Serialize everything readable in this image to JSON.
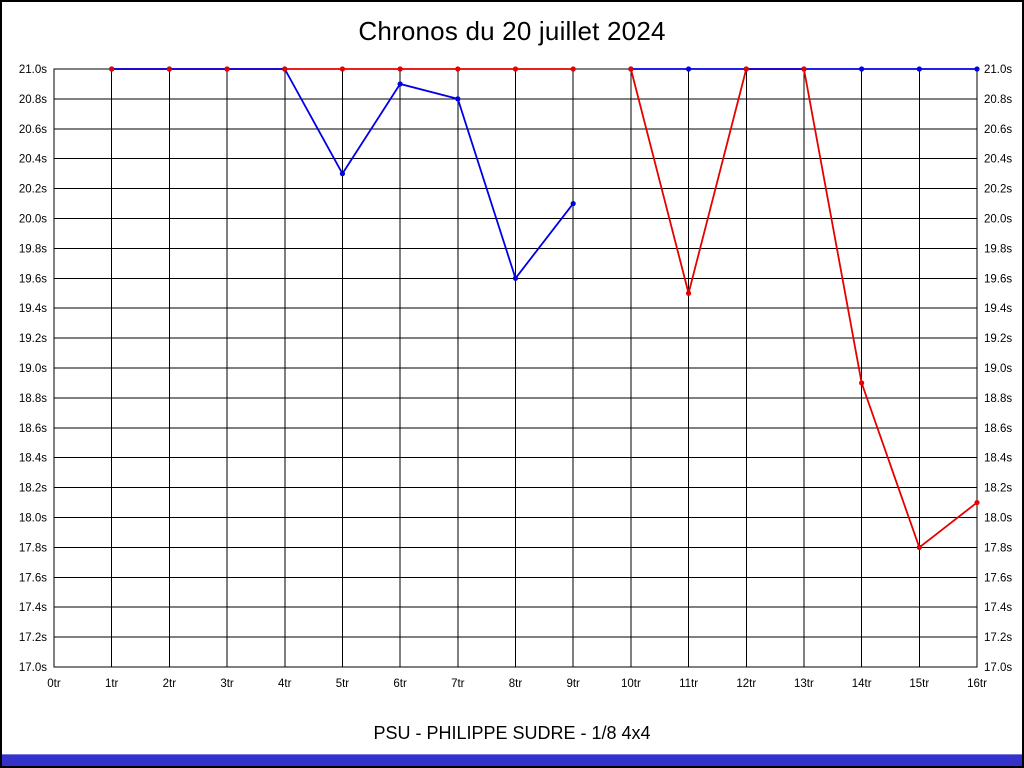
{
  "page": {
    "title": "Chronos du 20 juillet 2024",
    "footer": "PSU - PHILIPPE SUDRE - 1/8 4x4",
    "footer_bar_color": "#3333cc",
    "background_color": "#ffffff",
    "border_color": "#000000"
  },
  "chart_data": {
    "type": "line",
    "title": "Chronos du 20 juillet 2024",
    "subtitle": "PSU - PHILIPPE SUDRE - 1/8 4x4",
    "x_categories": [
      "0tr",
      "1tr",
      "2tr",
      "3tr",
      "4tr",
      "5tr",
      "6tr",
      "7tr",
      "8tr",
      "9tr",
      "10tr",
      "11tr",
      "12tr",
      "13tr",
      "14tr",
      "15tr",
      "16tr"
    ],
    "xlabel": "",
    "ylabel": "",
    "y_min": 17.0,
    "y_max": 21.0,
    "y_step": 0.2,
    "y_unit": "s",
    "grid": true,
    "y_labels_on_both_sides": true,
    "legend": "none",
    "series": [
      {
        "name": "red-series",
        "color": "#e60000",
        "segments": [
          {
            "start_lap": 1,
            "values": [
              21.0,
              21.0,
              21.0,
              21.0,
              21.0,
              21.0,
              21.0,
              21.0,
              21.0
            ]
          },
          {
            "start_lap": 10,
            "values": [
              21.0,
              19.5,
              21.0,
              21.0,
              18.9,
              17.8,
              18.1
            ]
          }
        ]
      },
      {
        "name": "blue-series",
        "color": "#0000e6",
        "segments": [
          {
            "start_lap": 1,
            "values": [
              21.0,
              21.0,
              21.0,
              21.0,
              20.3,
              20.9,
              20.8,
              19.6,
              20.1
            ]
          },
          {
            "start_lap": 10,
            "values": [
              21.0,
              21.0,
              21.0,
              21.0,
              21.0,
              21.0,
              21.0
            ]
          }
        ]
      }
    ]
  }
}
